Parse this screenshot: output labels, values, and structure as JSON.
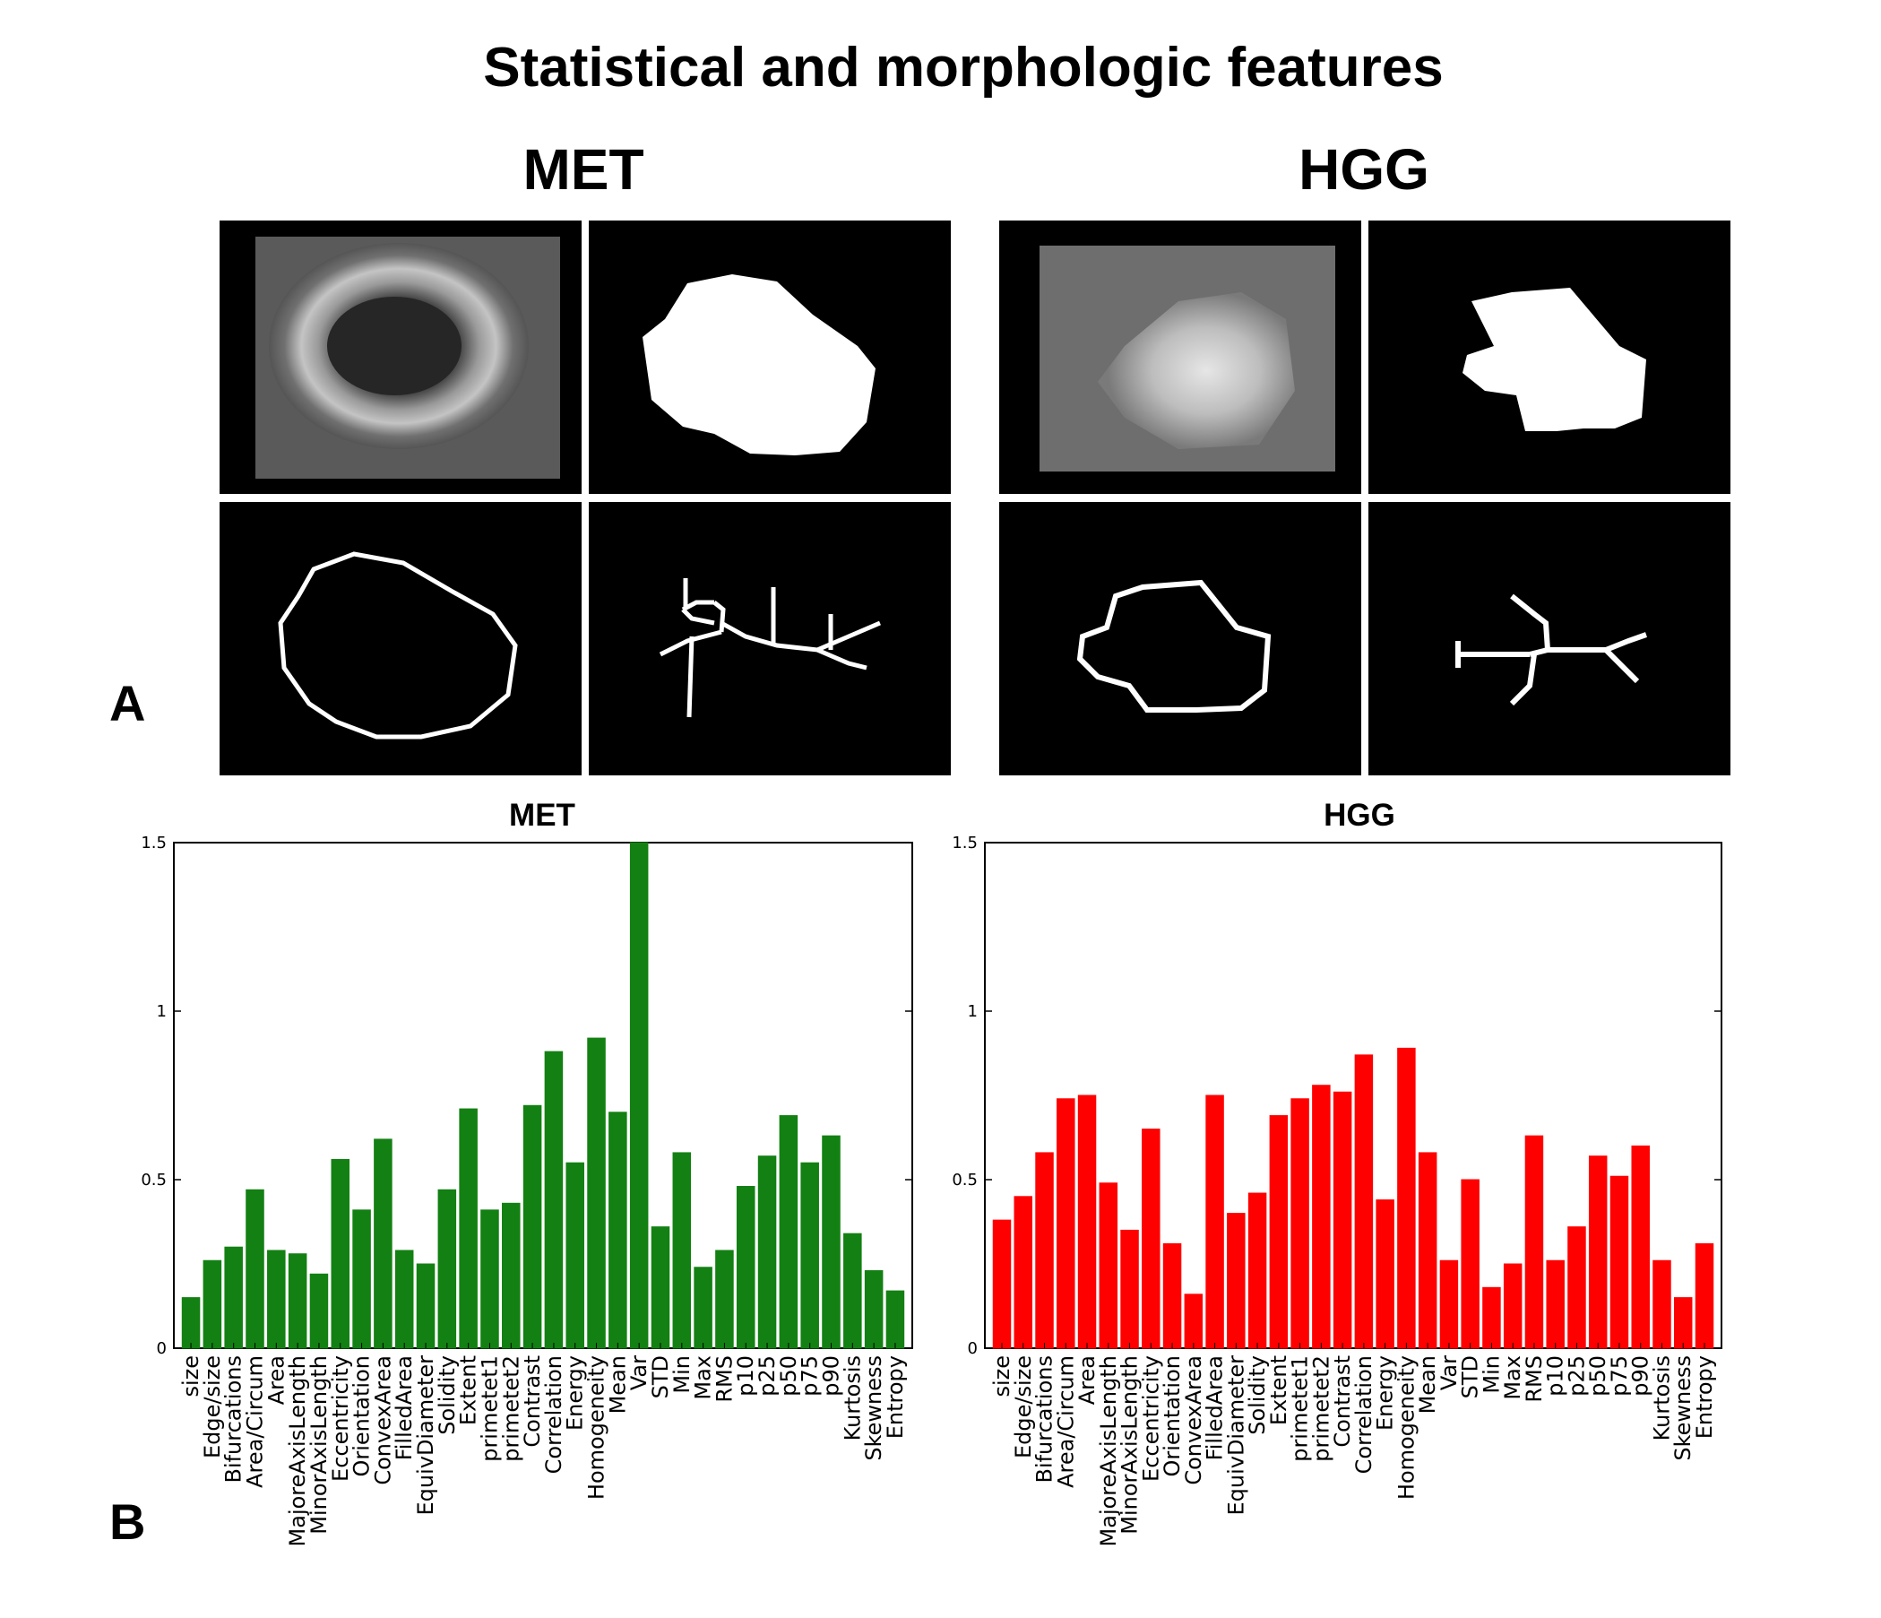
{
  "figure": {
    "title": "Statistical and morphologic features",
    "panel_a_label": "A",
    "panel_b_label": "B",
    "group_met": "MET",
    "group_hgg": "HGG"
  },
  "colors": {
    "met": "#138013",
    "hgg": "#ff0000"
  },
  "chart_data": [
    {
      "type": "bar",
      "title": "MET",
      "color": "#138013",
      "ylim": [
        0,
        1.5
      ],
      "yticks": [
        "0",
        "0.5",
        "1",
        "1.5"
      ],
      "categories": [
        "size",
        "Edge/size",
        "Bifurcations",
        "Area/Circum",
        "Area",
        "MajoreAxisLength",
        "MinorAxisLength",
        "Eccentricity",
        "Orientation",
        "ConvexArea",
        "FilledArea",
        "EquivDiameter",
        "Solidity",
        "Extent",
        "primetet1",
        "primetet2",
        "Contrast",
        "Correlation",
        "Energy",
        "Homogeneity",
        "Mean",
        "Var",
        "STD",
        "Min",
        "Max",
        "RMS",
        "p10",
        "p25",
        "p50",
        "p75",
        "p90",
        "Kurtosis",
        "Skewness",
        "Entropy"
      ],
      "values": [
        0.15,
        0.26,
        0.3,
        0.47,
        0.29,
        0.28,
        0.22,
        0.56,
        0.41,
        0.62,
        0.29,
        0.25,
        0.47,
        0.71,
        0.41,
        0.43,
        0.72,
        0.88,
        0.55,
        0.92,
        0.7,
        1.5,
        0.36,
        0.58,
        0.24,
        0.29,
        0.48,
        0.57,
        0.69,
        0.55,
        0.63,
        0.34,
        0.23,
        0.17
      ]
    },
    {
      "type": "bar",
      "title": "HGG",
      "color": "#ff0000",
      "ylim": [
        0,
        1.5
      ],
      "yticks": [
        "0",
        "0.5",
        "1",
        "1.5"
      ],
      "categories": [
        "size",
        "Edge/size",
        "Bifurcations",
        "Area/Circum",
        "Area",
        "MajoreAxisLength",
        "MinorAxisLength",
        "Eccentricity",
        "Orientation",
        "ConvexArea",
        "FilledArea",
        "EquivDiameter",
        "Solidity",
        "Extent",
        "primetet1",
        "primetet2",
        "Contrast",
        "Correlation",
        "Energy",
        "Homogeneity",
        "Mean",
        "Var",
        "STD",
        "Min",
        "Max",
        "RMS",
        "p10",
        "p25",
        "p50",
        "p75",
        "p90",
        "Kurtosis",
        "Skewness",
        "Entropy"
      ],
      "values": [
        0.38,
        0.45,
        0.58,
        0.74,
        0.75,
        0.49,
        0.35,
        0.65,
        0.31,
        0.16,
        0.75,
        0.4,
        0.46,
        0.69,
        0.74,
        0.78,
        0.76,
        0.87,
        0.44,
        0.89,
        0.58,
        0.26,
        0.5,
        0.18,
        0.25,
        0.63,
        0.26,
        0.36,
        0.57,
        0.51,
        0.6,
        0.26,
        0.15,
        0.31
      ]
    }
  ]
}
